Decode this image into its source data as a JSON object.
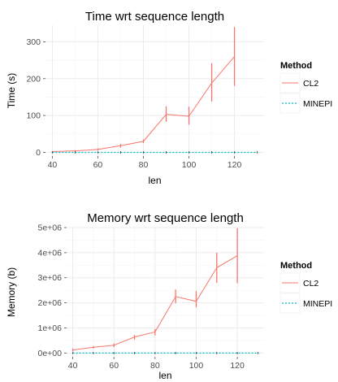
{
  "chart_data": [
    {
      "type": "line",
      "title": "Time wrt sequence length",
      "xlabel": "len",
      "ylabel": "Time (s)",
      "xlim": [
        37,
        133
      ],
      "ylim": [
        -10,
        345
      ],
      "xticks": [
        40,
        60,
        80,
        100,
        120
      ],
      "yticks": [
        0,
        100,
        200,
        300
      ],
      "ytick_labels": [
        "0",
        "100",
        "200",
        "300"
      ],
      "grid": true,
      "legend": {
        "title": "Method",
        "position": "right",
        "entries": [
          "CL2",
          "MINEPI"
        ]
      },
      "series": [
        {
          "name": "CL2",
          "color": "#F8766D",
          "style": "solid",
          "x": [
            40,
            50,
            60,
            70,
            80,
            90,
            100,
            110,
            120
          ],
          "y": [
            2,
            4,
            8,
            18,
            30,
            103,
            98,
            188,
            260
          ],
          "err_low": [
            1,
            2,
            5,
            13,
            25,
            83,
            75,
            138,
            180
          ],
          "err_high": [
            3,
            6,
            11,
            23,
            35,
            125,
            124,
            242,
            340
          ]
        },
        {
          "name": "MINEPI",
          "color": "#00BFC4",
          "style": "dotted",
          "x": [
            40,
            50,
            60,
            70,
            80,
            90,
            100,
            110,
            120,
            130
          ],
          "y": [
            0,
            0,
            0,
            0,
            0,
            0,
            0,
            0,
            0,
            0
          ]
        }
      ]
    },
    {
      "type": "line",
      "title": "Memory wrt sequence length",
      "xlabel": "len",
      "ylabel": "Memory (b)",
      "xlim": [
        37,
        133
      ],
      "ylim": [
        -150000,
        5000000
      ],
      "xticks": [
        40,
        60,
        80,
        100,
        120
      ],
      "yticks": [
        0,
        1000000,
        2000000,
        3000000,
        4000000,
        5000000
      ],
      "ytick_labels": [
        "0e+00",
        "1e+06",
        "2e+06",
        "3e+06",
        "4e+06",
        "5e+06"
      ],
      "grid": true,
      "legend": {
        "title": "Method",
        "position": "right",
        "entries": [
          "CL2",
          "MINEPI"
        ]
      },
      "series": [
        {
          "name": "CL2",
          "color": "#F8766D",
          "style": "solid",
          "x": [
            40,
            50,
            60,
            70,
            80,
            90,
            100,
            110,
            120
          ],
          "y": [
            120000,
            230000,
            310000,
            640000,
            840000,
            2250000,
            2060000,
            3400000,
            3880000
          ],
          "err_low": [
            60000,
            180000,
            230000,
            540000,
            700000,
            1980000,
            1820000,
            2800000,
            2780000
          ],
          "err_high": [
            180000,
            280000,
            380000,
            720000,
            960000,
            2530000,
            2470000,
            4000000,
            4980000
          ]
        },
        {
          "name": "MINEPI",
          "color": "#00BFC4",
          "style": "dotted",
          "x": [
            40,
            50,
            60,
            70,
            80,
            90,
            100,
            110,
            120,
            130
          ],
          "y": [
            0,
            0,
            0,
            0,
            0,
            0,
            0,
            0,
            0,
            0
          ]
        }
      ]
    }
  ]
}
